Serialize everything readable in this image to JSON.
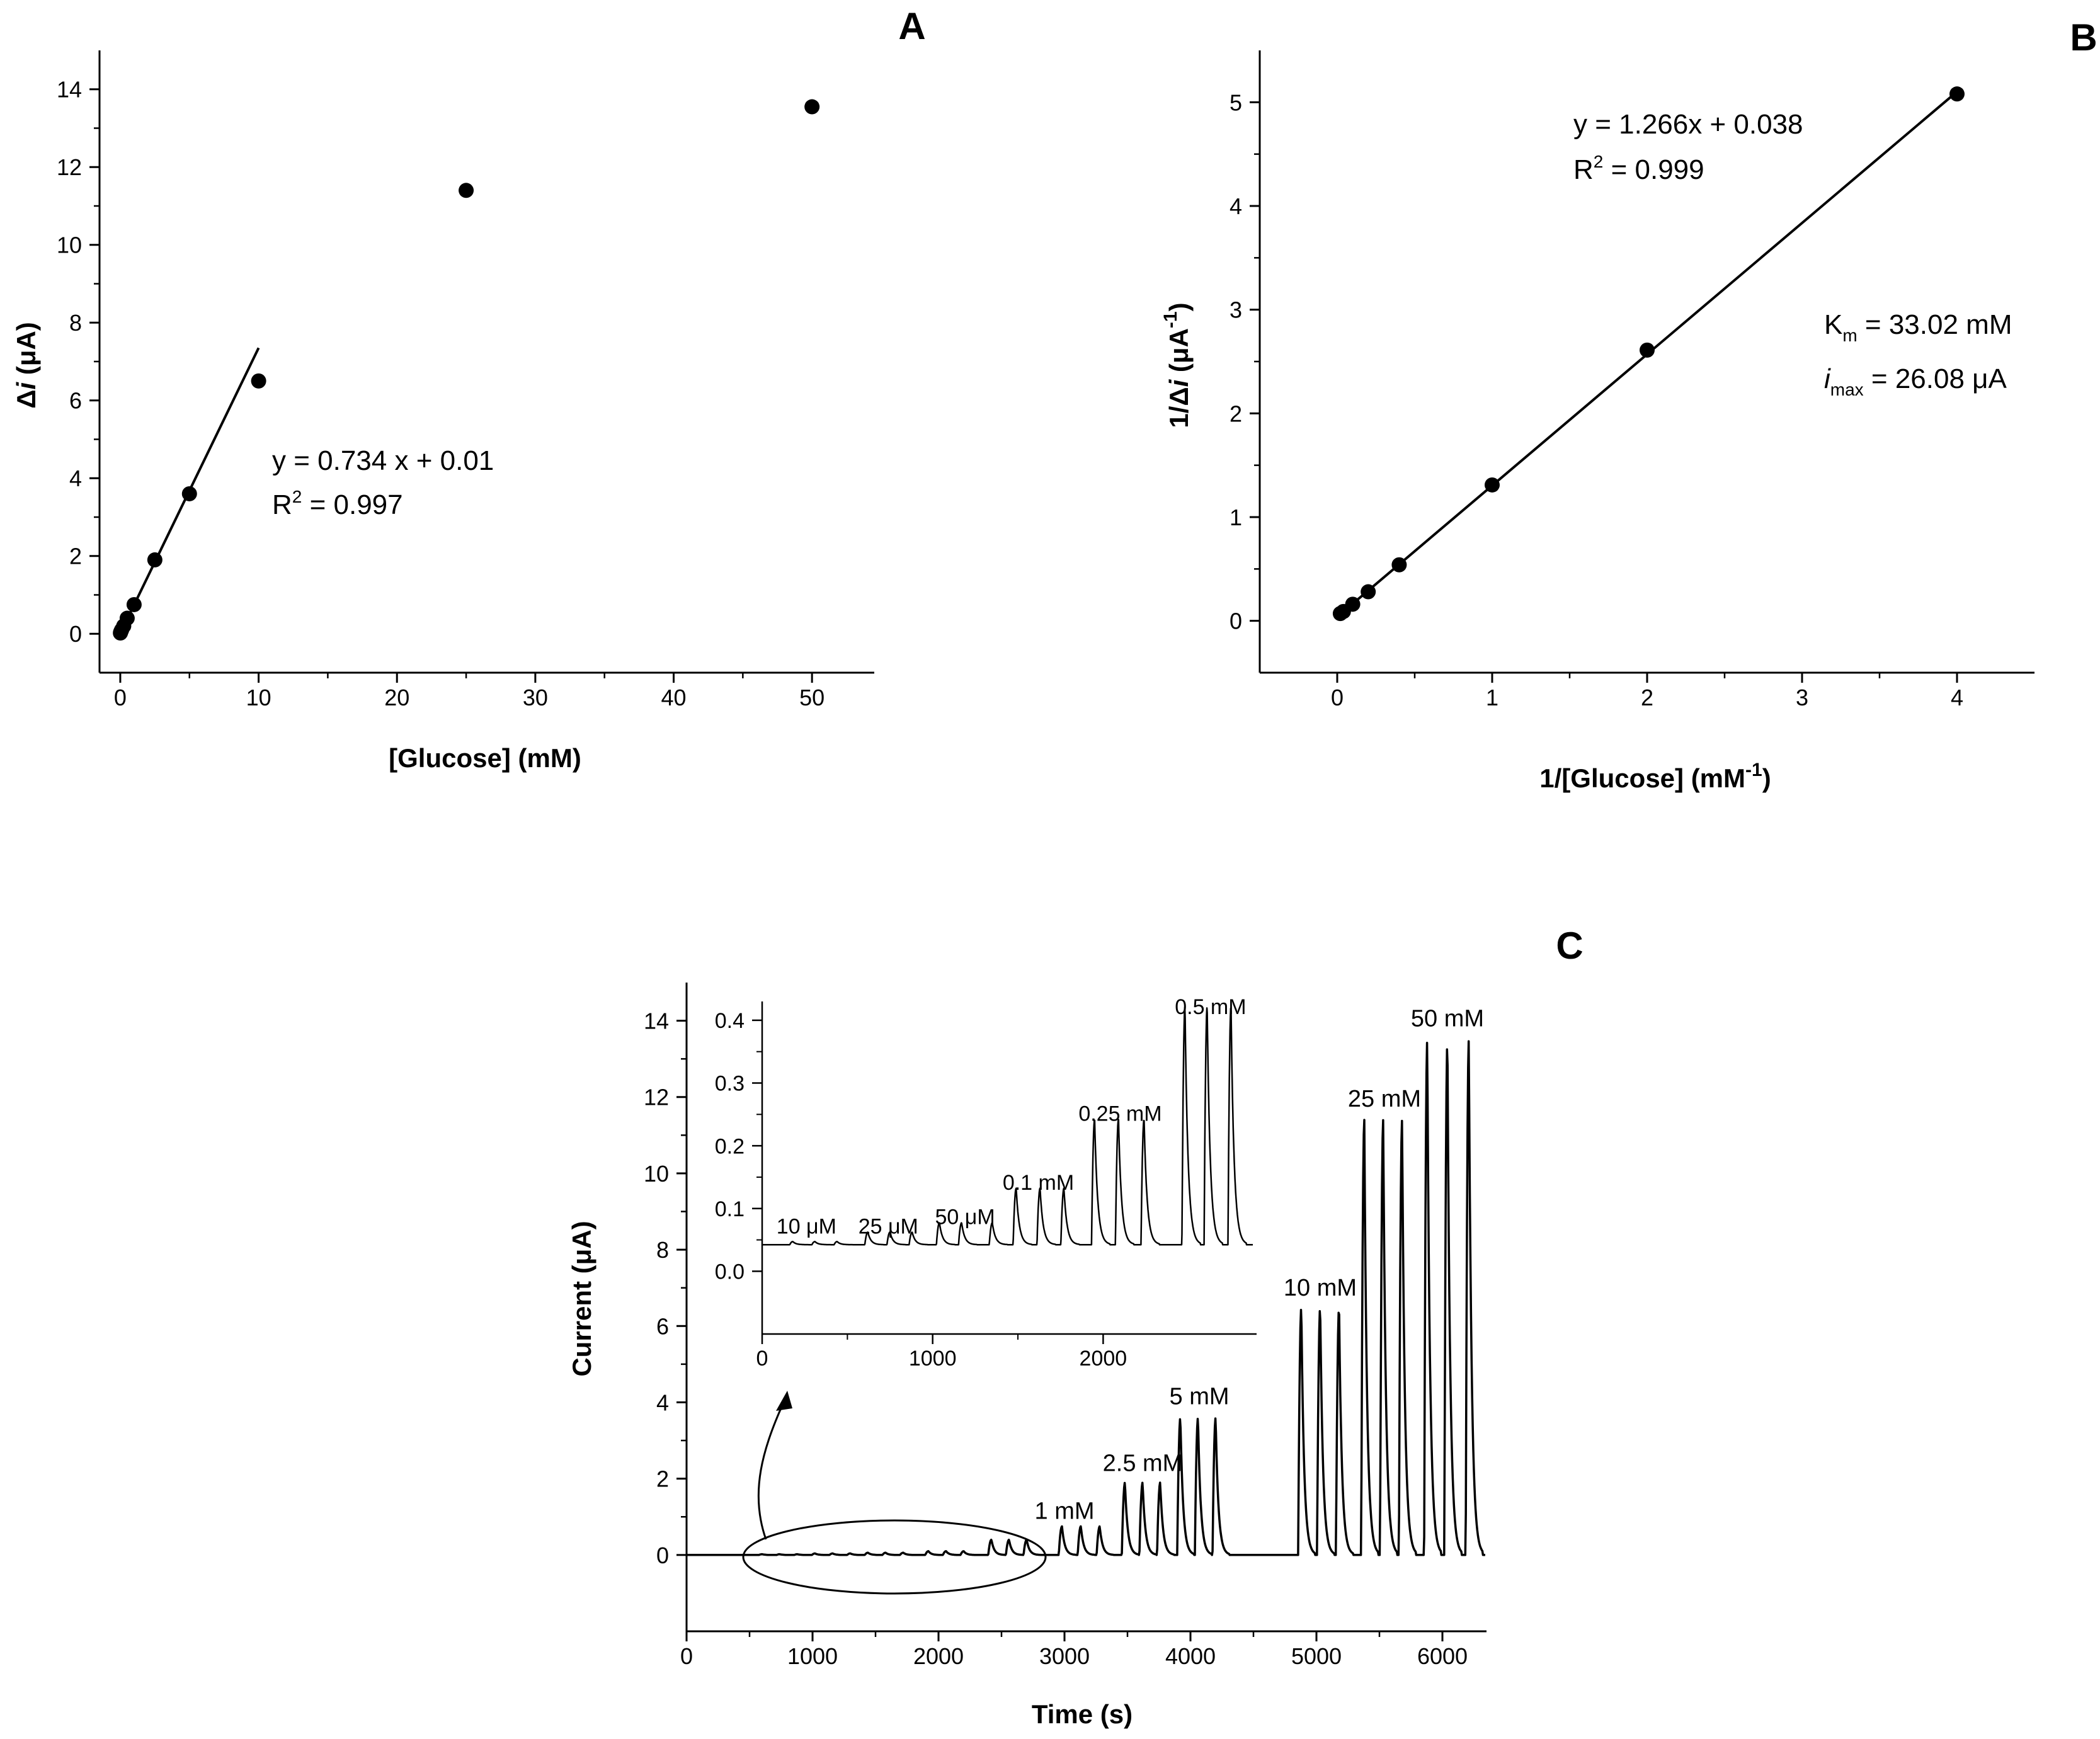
{
  "chart_data": [
    {
      "panel": "A",
      "type": "scatter",
      "xlabel": "[Glucose] (mM)",
      "ylabel_prefix": "Δ",
      "ylabel_var": "i",
      "ylabel_suffix": " (μA)",
      "xlim": [
        -1.5,
        54.5
      ],
      "ylim": [
        -1,
        15
      ],
      "xticks": [
        0,
        10,
        20,
        30,
        40,
        50
      ],
      "yticks": [
        0,
        2,
        4,
        6,
        8,
        10,
        12,
        14
      ],
      "points": [
        {
          "x": 0.01,
          "y": 0.02
        },
        {
          "x": 0.025,
          "y": 0.04
        },
        {
          "x": 0.05,
          "y": 0.06
        },
        {
          "x": 0.1,
          "y": 0.1
        },
        {
          "x": 0.25,
          "y": 0.2
        },
        {
          "x": 0.5,
          "y": 0.4
        },
        {
          "x": 1,
          "y": 0.75
        },
        {
          "x": 2.5,
          "y": 1.9
        },
        {
          "x": 5,
          "y": 3.6
        },
        {
          "x": 10,
          "y": 6.5
        },
        {
          "x": 25,
          "y": 11.4
        },
        {
          "x": 50,
          "y": 13.55
        }
      ],
      "fit": {
        "x0": 0,
        "y0": 0.01,
        "x1": 10,
        "y1": 7.35
      },
      "equation": "y = 0.734 x + 0.01",
      "r2_label": "R",
      "r2_sup": "2",
      "r2_value": " = 0.997"
    },
    {
      "panel": "B",
      "type": "scatter",
      "xlabel": "1/[Glucose] (mM",
      "xlabel_sup": "-1",
      "xlabel_close": ")",
      "ylabel_prefix": "1/Δ",
      "ylabel_var": "i",
      "ylabel_mid": " (μA",
      "ylabel_sup": "-1",
      "ylabel_close": ")",
      "xlim": [
        -0.5,
        4.5
      ],
      "ylim": [
        -0.5,
        5.5
      ],
      "xticks": [
        0,
        1,
        2,
        3,
        4
      ],
      "yticks": [
        0,
        1,
        2,
        3,
        4,
        5
      ],
      "points": [
        {
          "x": 0.02,
          "y": 0.07
        },
        {
          "x": 0.04,
          "y": 0.09
        },
        {
          "x": 0.1,
          "y": 0.16
        },
        {
          "x": 0.2,
          "y": 0.28
        },
        {
          "x": 0.4,
          "y": 0.54
        },
        {
          "x": 1,
          "y": 1.31
        },
        {
          "x": 2,
          "y": 2.61
        },
        {
          "x": 4,
          "y": 5.08
        }
      ],
      "fit": {
        "x0": 0,
        "y0": 0.038,
        "x1": 4,
        "y1": 5.102
      },
      "equation": "y = 1.266x + 0.038",
      "r2_label": "R",
      "r2_sup": "2",
      "r2_value": " = 0.999",
      "km_label": "K",
      "km_sub": "m",
      "km_value": " = 33.02 mM",
      "imax_label": "i",
      "imax_sub": "max",
      "imax_value": " = 26.08 μA"
    },
    {
      "panel": "C",
      "type": "line",
      "xlabel": "Time (s)",
      "ylabel": "Current (μA)",
      "xlim": [
        0,
        6350
      ],
      "ylim": [
        -2,
        15
      ],
      "xticks": [
        0,
        1000,
        2000,
        3000,
        4000,
        5000,
        6000
      ],
      "yticks": [
        0,
        2,
        4,
        6,
        8,
        10,
        12,
        14
      ],
      "additions": [
        {
          "conc": "10 μM",
          "times": [
            600,
            740,
            880
          ],
          "peak": 0.02
        },
        {
          "conc": "25 μM",
          "times": [
            1020,
            1160,
            1300
          ],
          "peak": 0.04
        },
        {
          "conc": "50 μM",
          "times": [
            1440,
            1580,
            1720
          ],
          "peak": 0.06
        },
        {
          "conc": "0.1 mM",
          "times": [
            1920,
            2060,
            2200
          ],
          "peak": 0.1
        },
        {
          "conc": "0.25 mM",
          "times": [
            2420,
            2560,
            2700
          ],
          "peak": 0.4
        },
        {
          "conc": "1 mM",
          "times": [
            2980,
            3130,
            3280
          ],
          "peak": 0.75
        },
        {
          "conc": "2.5 mM",
          "times": [
            3480,
            3620,
            3760
          ],
          "peak": 1.9
        },
        {
          "conc": "5 mM",
          "times": [
            3920,
            4060,
            4200
          ],
          "peak": 3.6
        },
        {
          "conc": "10 mM",
          "times": [
            4880,
            5030,
            5180
          ],
          "peak": 6.5
        },
        {
          "conc": "25 mM",
          "times": [
            5380,
            5530,
            5680
          ],
          "peak": 11.4
        },
        {
          "conc": "50 mM",
          "times": [
            5880,
            6040,
            6210
          ],
          "peak": 13.5
        }
      ],
      "labels": [
        {
          "text": "1 mM",
          "x": 3000,
          "y": 0.95
        },
        {
          "text": "2.5 mM",
          "x": 3620,
          "y": 2.2
        },
        {
          "text": "5 mM",
          "x": 4070,
          "y": 3.95
        },
        {
          "text": "10 mM",
          "x": 5030,
          "y": 6.8
        },
        {
          "text": "25 mM",
          "x": 5540,
          "y": 11.75
        },
        {
          "text": "50 mM",
          "x": 6040,
          "y": 13.85
        }
      ],
      "inset": {
        "xlim": [
          0,
          2900
        ],
        "ylim": [
          -0.1,
          0.43
        ],
        "xticks": [
          0,
          1000,
          2000
        ],
        "yticks": [
          0.0,
          0.1,
          0.2,
          0.3,
          0.4
        ],
        "ytick_labels": [
          "0.0",
          "0.1",
          "0.2",
          "0.3",
          "0.4"
        ],
        "additions": [
          {
            "conc": "10 μM",
            "times": [
              180,
              310,
              440
            ],
            "peak": 0.005
          },
          {
            "conc": "25 μM",
            "times": [
              620,
              750,
              880
            ],
            "peak": 0.02
          },
          {
            "conc": "50 μM",
            "times": [
              1040,
              1170,
              1350
            ],
            "peak": 0.035
          },
          {
            "conc": "0.1 mM",
            "times": [
              1490,
              1630,
              1770
            ],
            "peak": 0.09
          },
          {
            "conc": "0.25 mM",
            "times": [
              1950,
              2090,
              2240
            ],
            "peak": 0.2
          },
          {
            "conc": "0.5 mM",
            "times": [
              2480,
              2610,
              2750
            ],
            "peak": 0.38
          }
        ],
        "labels": [
          {
            "text": "10 μM",
            "x": 260,
            "y": 0.06
          },
          {
            "text": "25 μM",
            "x": 740,
            "y": 0.06
          },
          {
            "text": "50 μM",
            "x": 1190,
            "y": 0.075
          },
          {
            "text": "0.1 mM",
            "x": 1620,
            "y": 0.13
          },
          {
            "text": "0.25 mM",
            "x": 2100,
            "y": 0.24
          },
          {
            "text": "0.5 mM",
            "x": 2630,
            "y": 0.41
          }
        ]
      }
    }
  ]
}
